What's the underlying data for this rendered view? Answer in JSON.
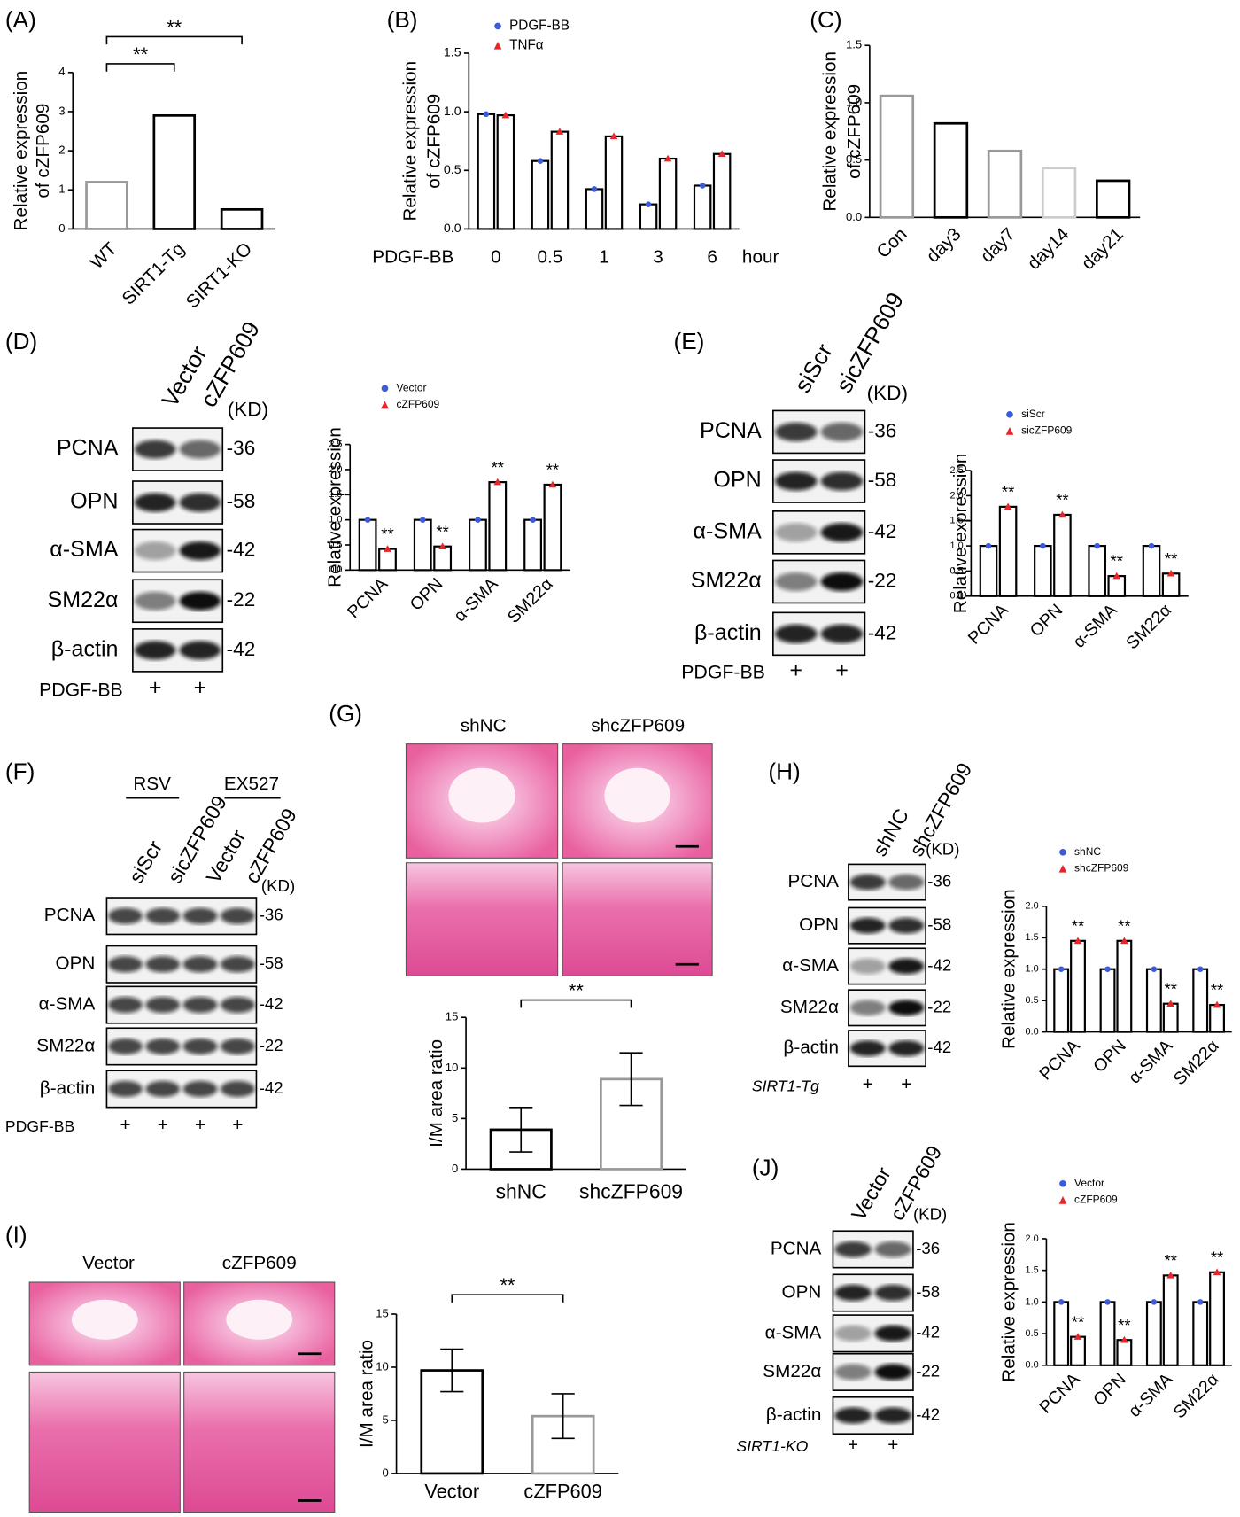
{
  "panel_labels": [
    "(A)",
    "(B)",
    "(C)",
    "(D)",
    "(E)",
    "(F)",
    "(G)",
    "(H)",
    "(I)",
    "(J)"
  ],
  "chart_data": [
    {
      "type": "bar",
      "ylabel": [
        "Relative expression",
        "of cZFP609"
      ],
      "categories": [
        "WT",
        "SIRT1-Tg",
        "SIRT1-KO"
      ],
      "values": [
        1.2,
        2.9,
        0.5
      ],
      "colors": [
        "#999999",
        "#000000",
        "#000000"
      ],
      "ylim": [
        0,
        4
      ],
      "yticks": [
        0,
        1,
        2,
        3,
        4
      ],
      "annotations": [
        "**",
        "**"
      ]
    },
    {
      "type": "grouped_bar",
      "ylabel": [
        "Relative expression",
        "of cZFP609"
      ],
      "xlabel": "PDGF-BB",
      "xlabel_right": "hour",
      "categories": [
        "0",
        "0.5",
        "1",
        "3",
        "6"
      ],
      "series": [
        {
          "name": "PDGF-BB",
          "color": "#3b5bdb",
          "values": [
            0.98,
            0.58,
            0.34,
            0.21,
            0.37
          ]
        },
        {
          "name": "TNFα",
          "color": "#e8262a",
          "values": [
            0.97,
            0.83,
            0.79,
            0.6,
            0.64
          ]
        }
      ],
      "ylim": [
        0,
        1.5
      ],
      "yticks": [
        {
          "value": 0,
          "label": "0.0"
        },
        0.5,
        {
          "value": 1,
          "label": "1.0"
        },
        1.5
      ]
    },
    {
      "type": "bar",
      "ylabel": [
        "Relative expression",
        "of cZFP609"
      ],
      "categories": [
        "Con",
        "day3",
        "day7",
        "day14",
        "day21"
      ],
      "values": [
        1.06,
        0.82,
        0.58,
        0.43,
        0.32
      ],
      "colors": [
        "#999999",
        "#000000",
        "#999999",
        "#cccccc",
        "#000000"
      ],
      "ylim": [
        0,
        1.5
      ],
      "yticks": [
        {
          "value": 0,
          "label": "0.0"
        },
        0.5,
        {
          "value": 1,
          "label": "1.0"
        },
        1.5
      ]
    },
    {
      "type": "grouped_bar",
      "ylabel": [
        "Relative expression"
      ],
      "categories": [
        "PCNA",
        "OPN",
        "α-SMA",
        "SM22α"
      ],
      "series": [
        {
          "name": "Vector",
          "color": "#3b5bdb",
          "values": [
            1,
            1,
            1,
            1
          ]
        },
        {
          "name": "cZFP609",
          "color": "#e8262a",
          "values": [
            0.42,
            0.47,
            1.75,
            1.7
          ]
        }
      ],
      "ylim": [
        0,
        2.5
      ],
      "yticks": [
        {
          "value": 0,
          "label": "0.0"
        },
        0.5,
        {
          "value": 1,
          "label": "1.0"
        },
        1.5,
        {
          "value": 2,
          "label": "2.0"
        },
        2.5
      ],
      "annotations": [
        "**",
        "**",
        "**",
        "**"
      ]
    },
    {
      "type": "grouped_bar",
      "ylabel": [
        "Relative expression"
      ],
      "categories": [
        "PCNA",
        "OPN",
        "α-SMA",
        "SM22α"
      ],
      "series": [
        {
          "name": "siScr",
          "color": "#3b5bdb",
          "values": [
            1,
            1,
            1,
            1
          ]
        },
        {
          "name": "sicZFP609",
          "color": "#e8262a",
          "values": [
            1.78,
            1.62,
            0.4,
            0.45
          ]
        }
      ],
      "ylim": [
        0,
        2.5
      ],
      "yticks": [
        {
          "value": 0,
          "label": "0.0"
        },
        0.5,
        {
          "value": 1,
          "label": "1.0"
        },
        1.5,
        {
          "value": 2,
          "label": "2.0"
        },
        2.5
      ],
      "annotations": [
        "**",
        "**",
        "**",
        "**"
      ]
    },
    {
      "type": "bar",
      "ylabel": [
        "I/M area ratio"
      ],
      "categories": [
        "shNC",
        "shcZFP609"
      ],
      "values": [
        3.9,
        8.9
      ],
      "errors": [
        2.2,
        2.6
      ],
      "colors": [
        "#000000",
        "#999999"
      ],
      "ylim": [
        0,
        15
      ],
      "yticks": [
        0,
        5,
        10,
        15
      ],
      "annotations": [
        "**"
      ]
    },
    {
      "type": "grouped_bar",
      "ylabel": [
        "Relative expression"
      ],
      "categories": [
        "PCNA",
        "OPN",
        "α-SMA",
        "SM22α"
      ],
      "series": [
        {
          "name": "shNC",
          "color": "#3b5bdb",
          "values": [
            1,
            1,
            1,
            1
          ]
        },
        {
          "name": "shcZFP609",
          "color": "#e8262a",
          "values": [
            1.45,
            1.45,
            0.45,
            0.43
          ]
        }
      ],
      "ylim": [
        0,
        2
      ],
      "yticks": [
        {
          "value": 0,
          "label": "0.0"
        },
        0.5,
        {
          "value": 1,
          "label": "1.0"
        },
        1.5,
        {
          "value": 2,
          "label": "2.0"
        }
      ],
      "annotations": [
        "**",
        "**",
        "**",
        "**"
      ]
    },
    {
      "type": "bar",
      "ylabel": [
        "I/M area ratio"
      ],
      "categories": [
        "Vector",
        "cZFP609"
      ],
      "values": [
        9.7,
        5.4
      ],
      "errors": [
        2.0,
        2.1
      ],
      "colors": [
        "#000000",
        "#999999"
      ],
      "ylim": [
        0,
        15
      ],
      "yticks": [
        0,
        5,
        10,
        15
      ],
      "annotations": [
        "**"
      ]
    },
    {
      "type": "grouped_bar",
      "ylabel": [
        "Relative expression"
      ],
      "categories": [
        "PCNA",
        "OPN",
        "α-SMA",
        "SM22α"
      ],
      "series": [
        {
          "name": "Vector",
          "color": "#3b5bdb",
          "values": [
            1,
            1,
            1,
            1
          ]
        },
        {
          "name": "cZFP609",
          "color": "#e8262a",
          "values": [
            0.45,
            0.4,
            1.42,
            1.47
          ]
        }
      ],
      "ylim": [
        0,
        2
      ],
      "yticks": [
        {
          "value": 0,
          "label": "0.0"
        },
        0.5,
        {
          "value": 1,
          "label": "1.0"
        },
        1.5,
        {
          "value": 2,
          "label": "2.0"
        }
      ],
      "annotations": [
        "**",
        "**",
        "**",
        "**"
      ]
    }
  ],
  "blots": [
    {
      "lanes": [
        "Vector",
        "cZFP609"
      ],
      "proteins": [
        "PCNA",
        "OPN",
        "α-SMA",
        "SM22α",
        "β-actin"
      ],
      "kd": [
        "-36",
        "-58",
        "-42",
        "-22",
        "-42"
      ],
      "kd_unit": "(KD)",
      "treatment": "PDGF-BB",
      "treatment_marks": [
        "+",
        "+"
      ]
    },
    {
      "lanes": [
        "siScr",
        "sicZFP609"
      ],
      "proteins": [
        "PCNA",
        "OPN",
        "α-SMA",
        "SM22α",
        "β-actin"
      ],
      "kd": [
        "-36",
        "-58",
        "-42",
        "-22",
        "-42"
      ],
      "kd_unit": "(KD)",
      "treatment": "PDGF-BB",
      "treatment_marks": [
        "+",
        "+"
      ]
    },
    {
      "groups": [
        "RSV",
        "EX527"
      ],
      "lanes": [
        "siScr",
        "sicZFP609",
        "Vector",
        "cZFP609"
      ],
      "proteins": [
        "PCNA",
        "OPN",
        "α-SMA",
        "SM22α",
        "β-actin"
      ],
      "kd": [
        "-36",
        "-58",
        "-42",
        "-22",
        "-42"
      ],
      "kd_unit": "(KD)",
      "treatment": "PDGF-BB",
      "treatment_marks": [
        "+",
        "+",
        "+",
        "+"
      ]
    },
    {
      "lanes": [
        "shNC",
        "shcZFP609"
      ],
      "proteins": [
        "PCNA",
        "OPN",
        "α-SMA",
        "SM22α",
        "β-actin"
      ],
      "kd": [
        "-36",
        "-58",
        "-42",
        "-22",
        "-42"
      ],
      "kd_unit": "(KD)",
      "treatment": "SIRT1-Tg",
      "treatment_marks": [
        "+",
        "+"
      ]
    },
    {
      "lanes": [
        "Vector",
        "cZFP609"
      ],
      "proteins": [
        "PCNA",
        "OPN",
        "α-SMA",
        "SM22α",
        "β-actin"
      ],
      "kd": [
        "-36",
        "-58",
        "-42",
        "-22",
        "-42"
      ],
      "kd_unit": "(KD)",
      "treatment": "SIRT1-KO",
      "treatment_marks": [
        "+",
        "+"
      ]
    }
  ],
  "histology": [
    {
      "columns": [
        "shNC",
        "shcZFP609"
      ]
    },
    {
      "columns": [
        "Vector",
        "cZFP609"
      ]
    }
  ]
}
